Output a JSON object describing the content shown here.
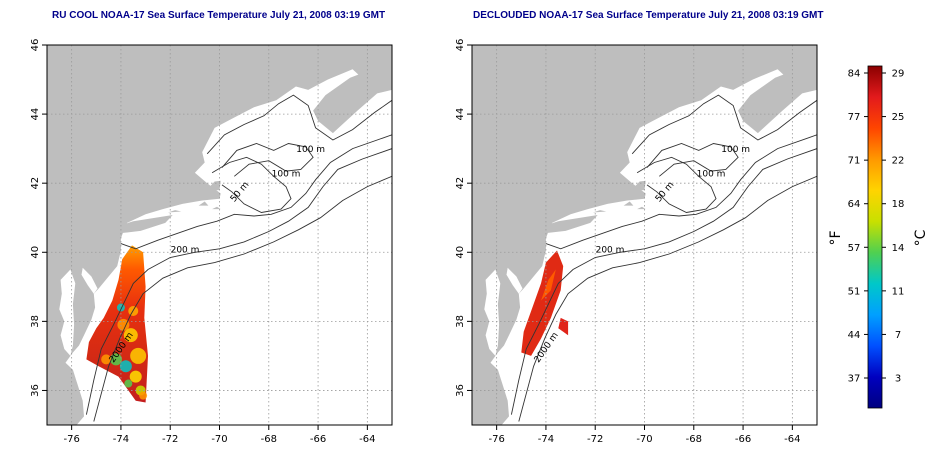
{
  "panels": [
    {
      "id": "left",
      "title": "RU COOL NOAA-17 Sea Surface Temperature July 21, 2008 03:19 GMT",
      "variant": "raw"
    },
    {
      "id": "right",
      "title": "DECLOUDED NOAA-17 Sea Surface Temperature July 21, 2008 03:19 GMT",
      "variant": "declouded"
    }
  ],
  "map": {
    "lon_range": [
      -77,
      -63
    ],
    "lat_range": [
      35,
      46
    ],
    "x_ticks": [
      "-76",
      "-74",
      "-72",
      "-70",
      "-68",
      "-66",
      "-64"
    ],
    "y_ticks": [
      "36",
      "38",
      "40",
      "42",
      "44",
      "46"
    ],
    "land_color": "#bebebe",
    "grid": "dotted",
    "contour_labels": [
      "100 m",
      "100 m",
      "50 m",
      "200 m",
      "2000 m"
    ]
  },
  "colorbar": {
    "f_ticks": [
      "84",
      "77",
      "71",
      "64",
      "57",
      "51",
      "44",
      "37"
    ],
    "c_ticks": [
      "29",
      "25",
      "22",
      "18",
      "14",
      "11",
      "7",
      "3"
    ],
    "f_label": "°F",
    "c_label": "°C",
    "colors_top_to_bottom": [
      "#8b0000",
      "#e31a1c",
      "#ff4500",
      "#ff9900",
      "#ffd400",
      "#c8e000",
      "#50d050",
      "#00c8c8",
      "#00a0ff",
      "#0050ff",
      "#0000c0",
      "#000080"
    ]
  }
}
